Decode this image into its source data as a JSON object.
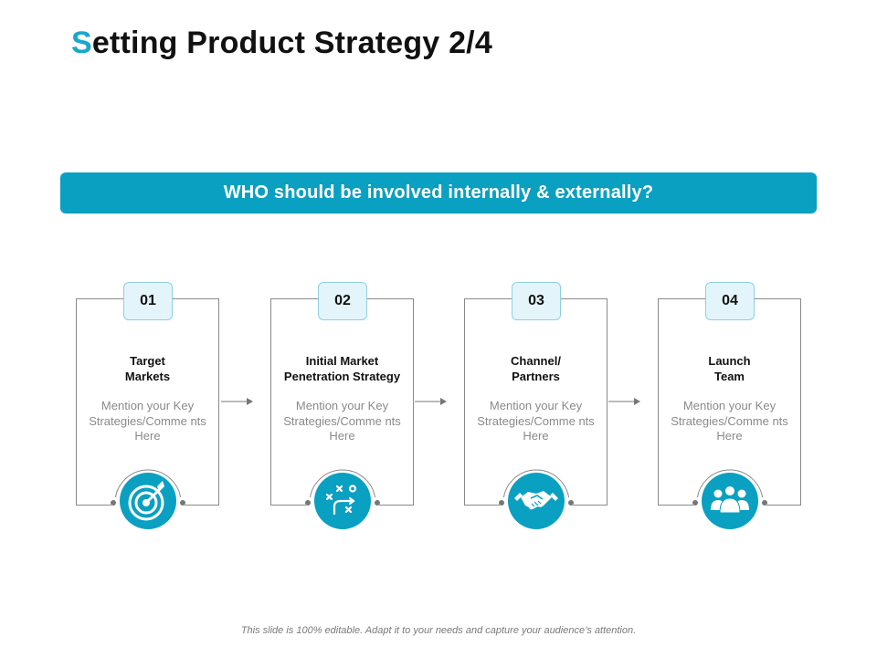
{
  "title": {
    "first_letter": "S",
    "rest": "etting Product Strategy 2/4"
  },
  "banner": {
    "text": "WHO should be involved internally & externally?"
  },
  "cards": [
    {
      "number": "01",
      "title_line1": "Target",
      "title_line2": "Markets",
      "desc": "Mention your Key Strategies/Comme nts Here",
      "icon": "target-icon"
    },
    {
      "number": "02",
      "title_line1": "Initial Market",
      "title_line2": "Penetration Strategy",
      "desc": "Mention your Key Strategies/Comme nts Here",
      "icon": "strategy-play-icon"
    },
    {
      "number": "03",
      "title_line1": "Channel/",
      "title_line2": "Partners",
      "desc": "Mention your Key Strategies/Comme nts Here",
      "icon": "handshake-icon"
    },
    {
      "number": "04",
      "title_line1": "Launch",
      "title_line2": "Team",
      "desc": "Mention your Key Strategies/Comme nts Here",
      "icon": "team-icon"
    }
  ],
  "footer": {
    "text": "This slide is 100% editable. Adapt it to your needs and capture your audience’s attention."
  },
  "colors": {
    "accent": "#0aa0c2",
    "title_accent": "#1aa7c9",
    "tab_bg": "#e3f5fb",
    "desc_text": "#8a8a8a"
  }
}
